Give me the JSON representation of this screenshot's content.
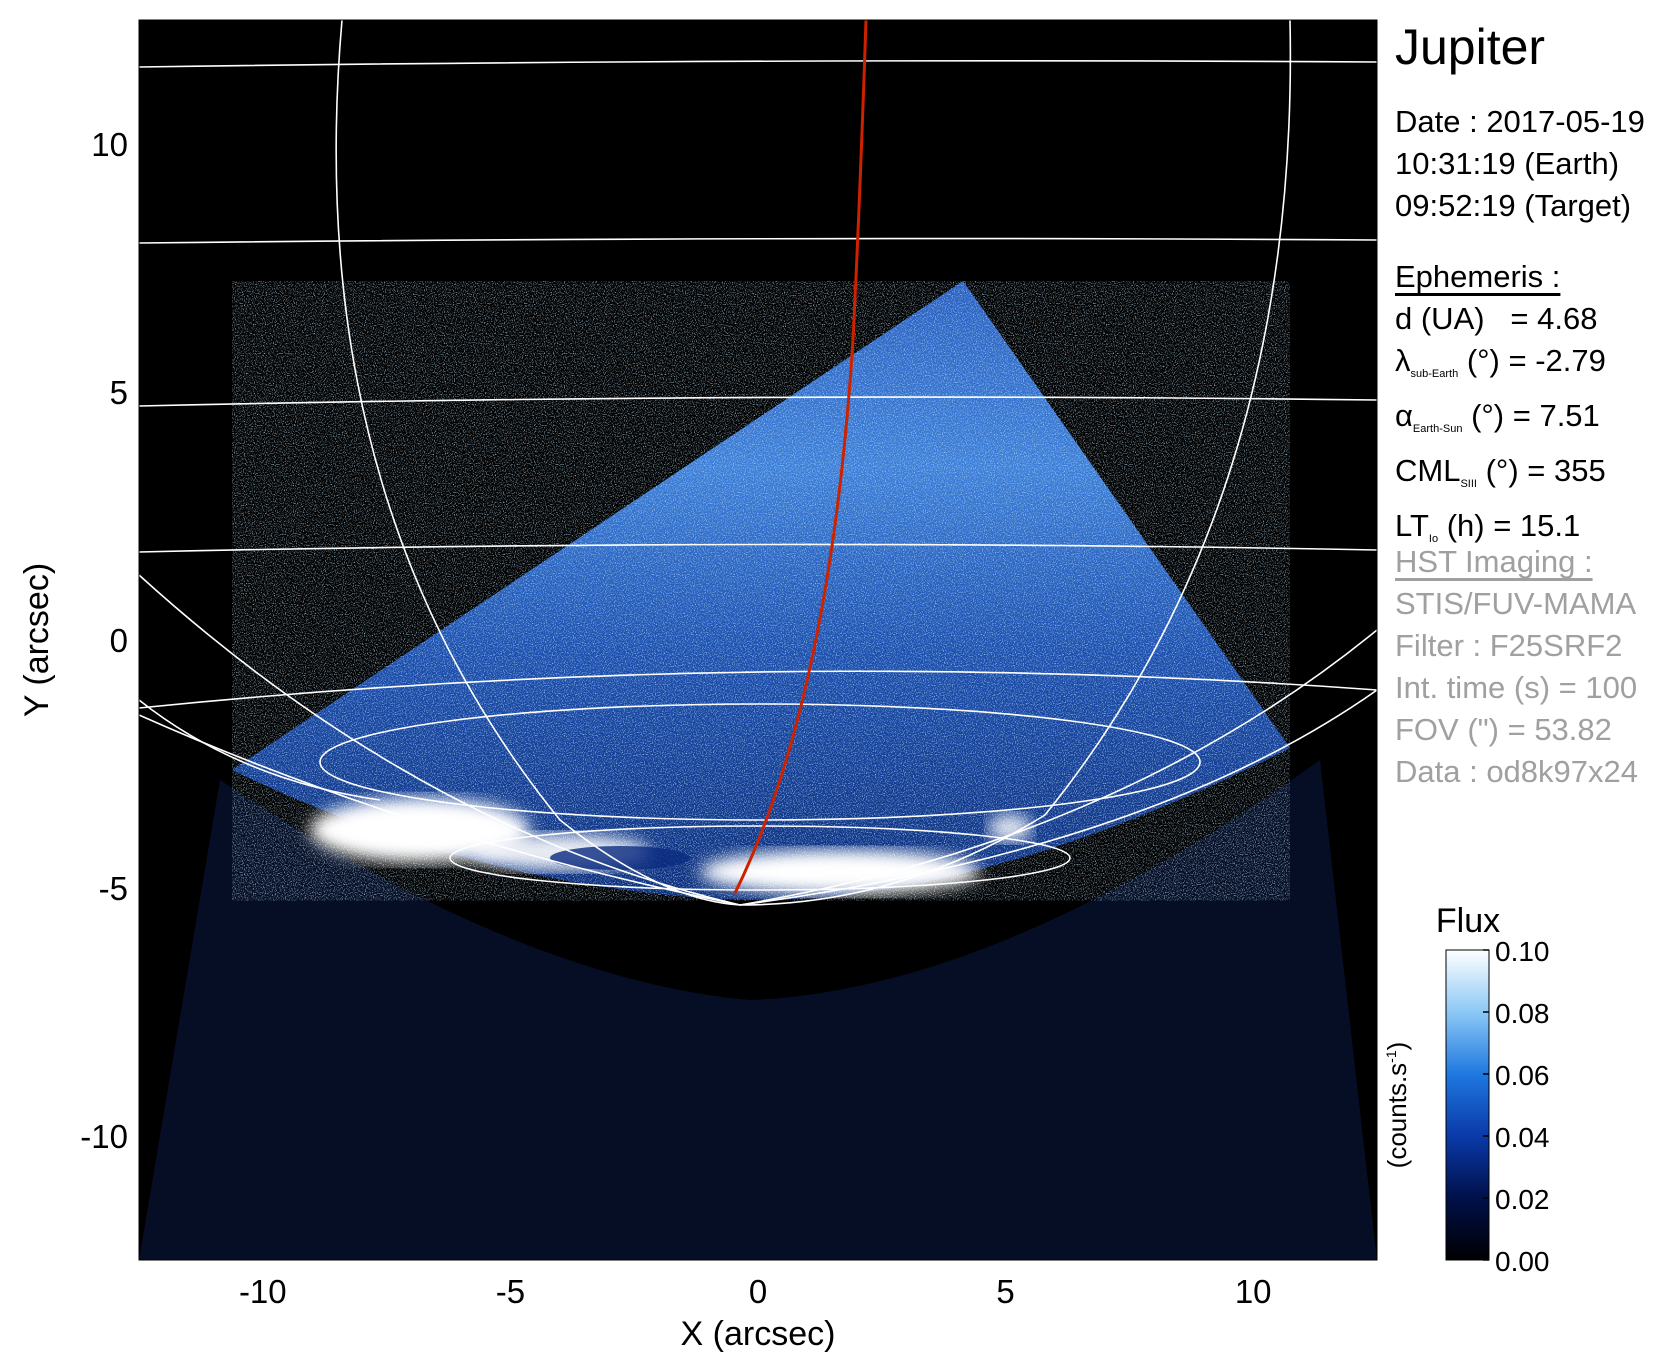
{
  "header": {
    "target": "Jupiter",
    "date_lines": [
      "Date : 2017-05-19",
      "10:31:19 (Earth)",
      "09:52:19 (Target)"
    ]
  },
  "ephemeris": {
    "title": "Ephemeris :",
    "d_label": "d (UA)",
    "d_value": "= 4.68",
    "lat_symbol": "λ",
    "lat_sub": "sub-Earth",
    "lat_rest": "(°) = -2.79",
    "phase_symbol": "α",
    "phase_sub": "Earth-Sun",
    "phase_rest": "(°) = 7.51",
    "cml_symbol": "CML",
    "cml_sub": "SIII",
    "cml_rest": "(°) = 355",
    "lt_symbol": "LT",
    "lt_sub": "Io",
    "lt_rest": "(h) = 15.1"
  },
  "imaging": {
    "title": "HST Imaging :",
    "lines": [
      "STIS/FUV-MAMA",
      "Filter : F25SRF2",
      "Int. time (s) = 100",
      "FOV (\") = 53.82",
      "Data : od8k97x24"
    ]
  },
  "chart_data": {
    "type": "heatmap",
    "title": "",
    "xlabel": "X (arcsec)",
    "ylabel": "Y (arcsec)",
    "xlim": [
      -12.5,
      12.5
    ],
    "ylim": [
      -12.5,
      12.5
    ],
    "xticks": [
      -10,
      -5,
      0,
      5,
      10
    ],
    "yticks": [
      -10,
      -5,
      0,
      5,
      10
    ],
    "xtick_labels": [
      "-10",
      "-5",
      "0",
      "5",
      "10"
    ],
    "ytick_labels": [
      "-10",
      "-5",
      "0",
      "5",
      "10"
    ],
    "colorbar": {
      "title": "Flux",
      "unit_label": "(counts.s",
      "unit_exp": "-1",
      "unit_close": ")",
      "range": [
        0.0,
        0.1
      ],
      "ticks": [
        0.0,
        0.02,
        0.04,
        0.06,
        0.08,
        0.1
      ],
      "tick_labels": [
        "0.00",
        "0.02",
        "0.04",
        "0.06",
        "0.08",
        "0.10"
      ],
      "colors": [
        "#000000",
        "#00104a",
        "#0a3aa8",
        "#1f78e0",
        "#8cc8f5",
        "#ffffff"
      ]
    },
    "background_color": "#000000",
    "grid_color": "#ffffff",
    "footprint_color": "#cc2200",
    "grid": true
  }
}
